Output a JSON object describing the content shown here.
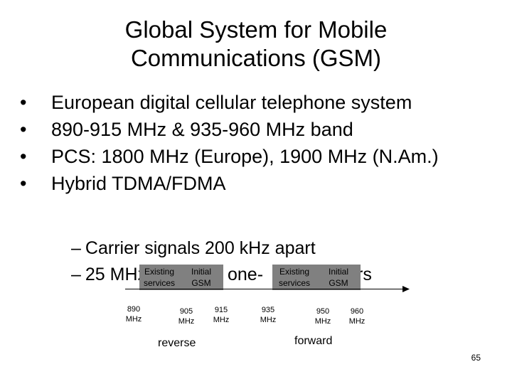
{
  "slide": {
    "title_line1": "Global System for Mobile",
    "title_line2": "Communications (GSM)",
    "bullets": [
      "European digital cellular telephone system",
      "890-915 MHz & 935-960 MHz band",
      "PCS: 1800 MHz (Europe), 1900 MHz (N.Am.)",
      "Hybrid TDMA/FDMA"
    ],
    "bullet_symbol": "•",
    "sub_bullets": [
      "Carrier signals 200 kHz apart",
      "25 MHz",
      "one-",
      "rs"
    ],
    "dash_symbol": "–",
    "page_number": "65"
  },
  "diagram": {
    "boxes": [
      {
        "line1": "Existing",
        "line2": "services"
      },
      {
        "line1": "Initial",
        "line2": "GSM"
      },
      {
        "line1": "Existing",
        "line2": "services"
      },
      {
        "line1": "Initial",
        "line2": "GSM"
      }
    ],
    "ticks": [
      {
        "value": "890",
        "unit": "MHz"
      },
      {
        "value": "905",
        "unit": "MHz"
      },
      {
        "value": "915",
        "unit": "MHz"
      },
      {
        "value": "935",
        "unit": "MHz"
      },
      {
        "value": "950",
        "unit": "MHz"
      },
      {
        "value": "960",
        "unit": "MHz"
      }
    ],
    "reverse_label": "reverse",
    "forward_label": "forward"
  }
}
